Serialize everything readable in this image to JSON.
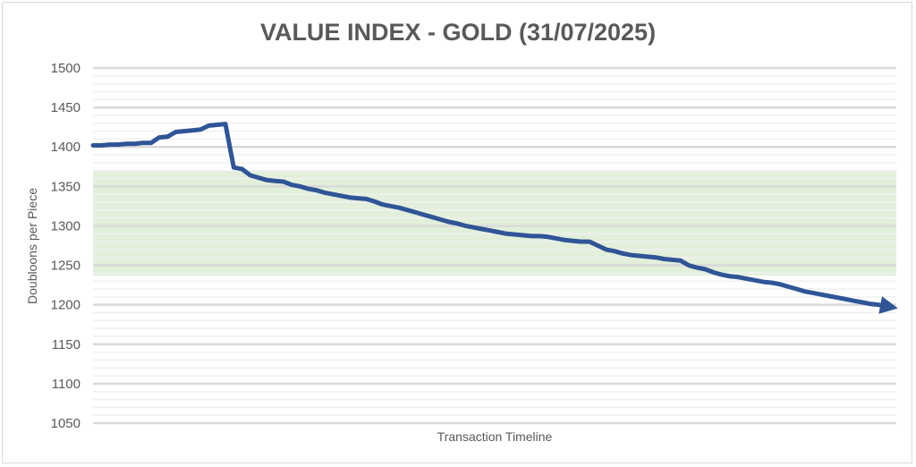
{
  "chart_data": {
    "type": "line",
    "title": "VALUE INDEX - GOLD (31/07/2025)",
    "xlabel": "Transaction Timeline",
    "ylabel": "Doubloons per Piece",
    "ylim": [
      1050,
      1500
    ],
    "yticks": [
      "1500",
      "1450",
      "1400",
      "1350",
      "1300",
      "1250",
      "1200",
      "1150",
      "1100",
      "1050"
    ],
    "grid": true,
    "band": {
      "from": 1237,
      "to": 1370,
      "color": "#e2efda"
    },
    "line_color": "#2f5597",
    "series": [
      {
        "values": [
          1402,
          1402,
          1403,
          1403,
          1404,
          1404,
          1405,
          1405,
          1412,
          1413,
          1419,
          1420,
          1421,
          1422,
          1427,
          1428,
          1429,
          1374,
          1372,
          1364,
          1361,
          1358,
          1357,
          1356,
          1352,
          1350,
          1347,
          1345,
          1342,
          1340,
          1338,
          1336,
          1335,
          1334,
          1331,
          1327,
          1325,
          1323,
          1320,
          1317,
          1314,
          1311,
          1308,
          1305,
          1303,
          1300,
          1298,
          1296,
          1294,
          1292,
          1290,
          1289,
          1288,
          1287,
          1287,
          1286,
          1284,
          1282,
          1281,
          1280,
          1280,
          1275,
          1270,
          1268,
          1265,
          1263,
          1262,
          1261,
          1260,
          1258,
          1257,
          1256,
          1250,
          1247,
          1245,
          1241,
          1238,
          1236,
          1235,
          1233,
          1231,
          1229,
          1228,
          1226,
          1223,
          1220,
          1217,
          1215,
          1213,
          1211,
          1209,
          1207,
          1205,
          1203,
          1201,
          1200,
          1198
        ]
      }
    ]
  }
}
